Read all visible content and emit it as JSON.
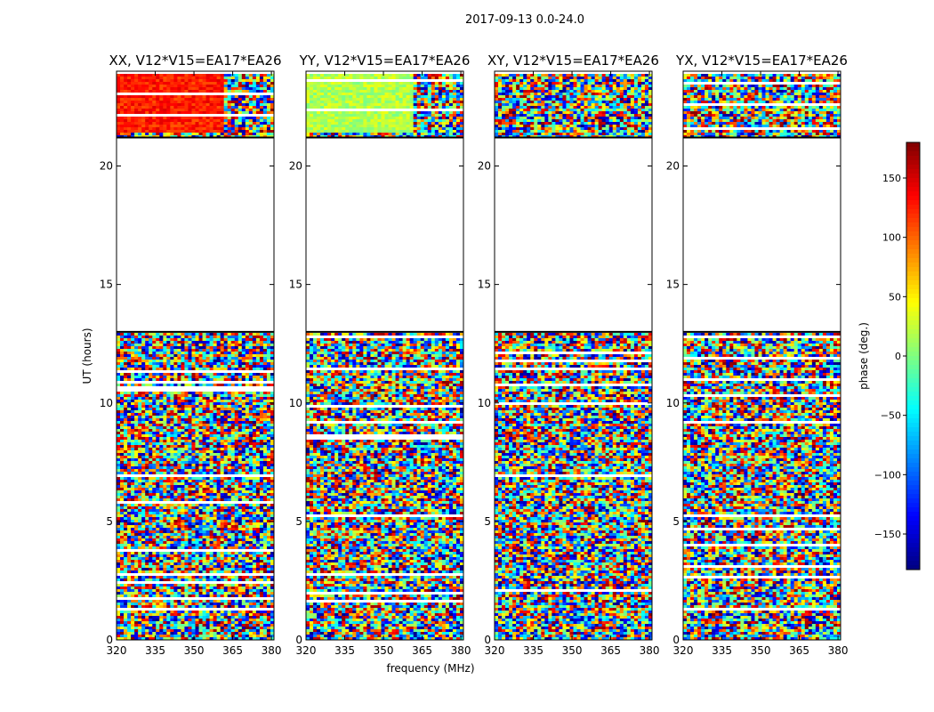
{
  "figure": {
    "suptitle": "2017-09-13 0.0-24.0",
    "xlabel": "frequency (MHz)",
    "ylabel": "UT (hours)",
    "colorbar_label": "phase (deg.)"
  },
  "chart_data": {
    "type": "heatmap",
    "description_of_values": "visibility phase vs frequency and UT",
    "xlim": [
      320,
      381
    ],
    "ylim": [
      0,
      24
    ],
    "x_ticks": [
      320,
      335,
      350,
      365,
      380
    ],
    "y_ticks": [
      0,
      5,
      10,
      15,
      20
    ],
    "color_scale": {
      "name": "jet",
      "min": -180,
      "max": 180,
      "ticks": [
        150,
        100,
        50,
        0,
        -50,
        -100,
        -150
      ]
    },
    "panels": [
      {
        "title": "XX, V12*V15=EA17*EA26",
        "pol": "XX"
      },
      {
        "title": "YY, V12*V15=EA17*EA26",
        "pol": "YY"
      },
      {
        "title": "XY, V12*V15=EA17*EA26",
        "pol": "XY"
      },
      {
        "title": "YX, V12*V15=EA17*EA26",
        "pol": "YX"
      }
    ],
    "data_gaps_ut_hours": [
      [
        13.0,
        21.2
      ]
    ],
    "flagged_rows_ut_hours": [
      0.15,
      1.5,
      5.8,
      9.3,
      10.2,
      12.0,
      22.9,
      23.15
    ]
  }
}
